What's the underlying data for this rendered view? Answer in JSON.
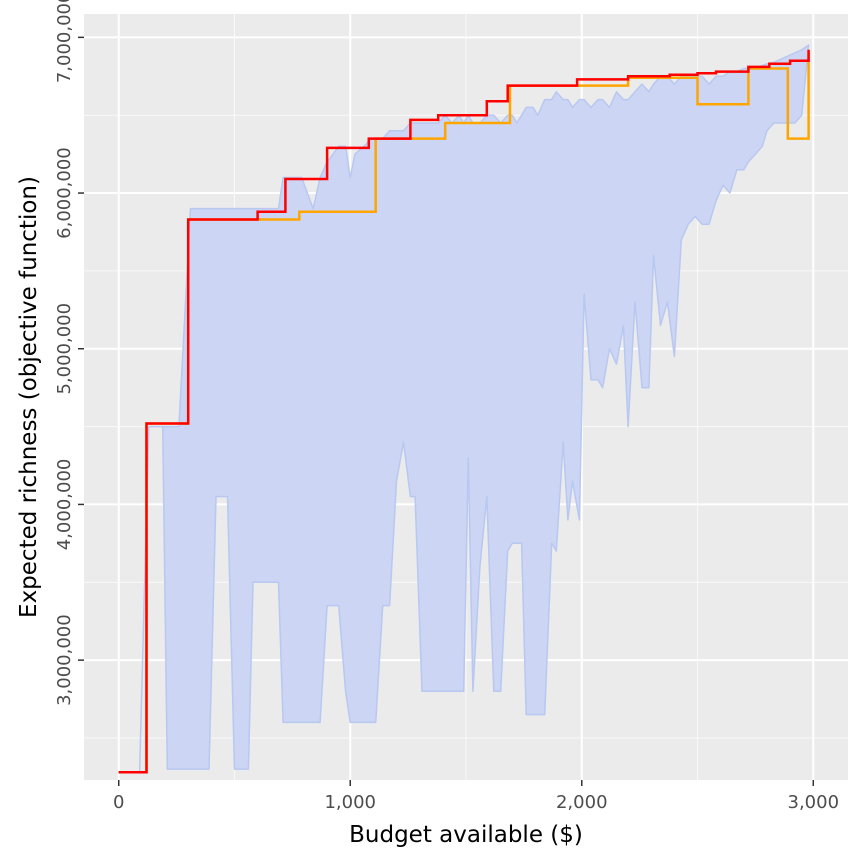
{
  "chart_data": {
    "type": "line",
    "title": "",
    "xlabel": "Budget available ($)",
    "ylabel": "Expected richness (objective function)",
    "xlim": [
      -150,
      3150
    ],
    "ylim": [
      2230000,
      7150000
    ],
    "x_ticks": [
      {
        "value": 0,
        "label": "0"
      },
      {
        "value": 1000,
        "label": "1,000"
      },
      {
        "value": 2000,
        "label": "2,000"
      },
      {
        "value": 3000,
        "label": "3,000"
      }
    ],
    "y_ticks": [
      {
        "value": 3000000,
        "label": "3,000,000"
      },
      {
        "value": 4000000,
        "label": "4,000,000"
      },
      {
        "value": 5000000,
        "label": "5,000,000"
      },
      {
        "value": 6000000,
        "label": "6,000,000"
      },
      {
        "value": 7000000,
        "label": "7,000,000"
      }
    ],
    "grid": true,
    "legend": "none",
    "colors": {
      "panel": "#ebebeb",
      "grid": "#ffffff",
      "ribbon_fill": "#ccd5f4",
      "ribbon_edge": "#b8c8f0",
      "optimal": "#ff0000",
      "alternative": "#ffa500"
    },
    "ribbon": {
      "x": [
        0,
        90,
        130,
        190,
        210,
        260,
        310,
        330,
        390,
        420,
        470,
        500,
        520,
        560,
        580,
        610,
        660,
        690,
        710,
        790,
        840,
        870,
        900,
        950,
        980,
        1000,
        1020,
        1060,
        1090,
        1110,
        1140,
        1170,
        1200,
        1230,
        1260,
        1280,
        1310,
        1340,
        1380,
        1410,
        1440,
        1470,
        1490,
        1510,
        1530,
        1560,
        1590,
        1620,
        1650,
        1680,
        1700,
        1720,
        1740,
        1760,
        1790,
        1810,
        1840,
        1870,
        1890,
        1920,
        1940,
        1960,
        1990,
        2010,
        2040,
        2070,
        2090,
        2120,
        2150,
        2180,
        2200,
        2230,
        2260,
        2290,
        2310,
        2340,
        2370,
        2400,
        2430,
        2460,
        2490,
        2520,
        2550,
        2580,
        2610,
        2640,
        2670,
        2700,
        2720,
        2750,
        2780,
        2800,
        2830,
        2860,
        2890,
        2920,
        2950,
        2980
      ],
      "high": [
        2280000,
        2280000,
        4500000,
        4500000,
        4500000,
        4500000,
        5900000,
        5900000,
        5900000,
        5900000,
        5900000,
        5900000,
        5900000,
        5900000,
        5900000,
        5900000,
        5900000,
        5900000,
        6100000,
        6100000,
        5900000,
        6100000,
        6200000,
        6300000,
        6300000,
        6100000,
        6250000,
        6300000,
        6350000,
        6350000,
        6350000,
        6400000,
        6400000,
        6400000,
        6450000,
        6450000,
        6450000,
        6450000,
        6450000,
        6500000,
        6450000,
        6500000,
        6450000,
        6500000,
        6450000,
        6450000,
        6500000,
        6500000,
        6450000,
        6500000,
        6500000,
        6450000,
        6500000,
        6550000,
        6550000,
        6500000,
        6600000,
        6600000,
        6650000,
        6600000,
        6600000,
        6550000,
        6600000,
        6600000,
        6550000,
        6600000,
        6600000,
        6550000,
        6650000,
        6600000,
        6600000,
        6650000,
        6700000,
        6650000,
        6700000,
        6750000,
        6750000,
        6700000,
        6750000,
        6750000,
        6750000,
        6750000,
        6700000,
        6750000,
        6750000,
        6780000,
        6780000,
        6800000,
        6800000,
        6800000,
        6820000,
        6830000,
        6840000,
        6860000,
        6880000,
        6900000,
        6920000,
        6950000
      ],
      "low": [
        2280000,
        2280000,
        4500000,
        4500000,
        2300000,
        2300000,
        2300000,
        2300000,
        2300000,
        4050000,
        4050000,
        2300000,
        2300000,
        2300000,
        3500000,
        3500000,
        3500000,
        3500000,
        2600000,
        2600000,
        2600000,
        2600000,
        3350000,
        3350000,
        2800000,
        2600000,
        2600000,
        2600000,
        2600000,
        2600000,
        3350000,
        3350000,
        4150000,
        4400000,
        4050000,
        4050000,
        2800000,
        2800000,
        2800000,
        2800000,
        2800000,
        2800000,
        2800000,
        4300000,
        2800000,
        3600000,
        4050000,
        2800000,
        2800000,
        3700000,
        3750000,
        3750000,
        3750000,
        2650000,
        2650000,
        2650000,
        2650000,
        3750000,
        3700000,
        4400000,
        3900000,
        4150000,
        3900000,
        5350000,
        4800000,
        4800000,
        4750000,
        5000000,
        4900000,
        5150000,
        4500000,
        5300000,
        4750000,
        4750000,
        5600000,
        5150000,
        5300000,
        4950000,
        5700000,
        5800000,
        5850000,
        5800000,
        5800000,
        5950000,
        6050000,
        6000000,
        6150000,
        6150000,
        6200000,
        6250000,
        6300000,
        6400000,
        6450000,
        6450000,
        6450000,
        6450000,
        6500000,
        6950000
      ]
    },
    "series": [
      {
        "color": "#ffa500",
        "x": [
          0,
          120,
          120,
          300,
          300,
          600,
          600,
          780,
          780,
          1110,
          1110,
          1410,
          1410,
          1690,
          1690,
          2200,
          2200,
          2500,
          2500,
          2720,
          2720,
          2890,
          2890,
          2980,
          2980
        ],
        "y": [
          2280000,
          2280000,
          4520000,
          4520000,
          5830000,
          5830000,
          5830000,
          5830000,
          5880000,
          5880000,
          6350000,
          6350000,
          6450000,
          6450000,
          6690000,
          6690000,
          6740000,
          6740000,
          6570000,
          6570000,
          6800000,
          6800000,
          6350000,
          6350000,
          6900000
        ]
      },
      {
        "color": "#ff0000",
        "x": [
          0,
          120,
          120,
          300,
          300,
          600,
          600,
          720,
          720,
          900,
          900,
          1080,
          1080,
          1260,
          1260,
          1380,
          1380,
          1590,
          1590,
          1680,
          1680,
          1980,
          1980,
          2200,
          2200,
          2380,
          2380,
          2500,
          2500,
          2580,
          2580,
          2720,
          2720,
          2810,
          2810,
          2900,
          2900,
          2980,
          2980
        ],
        "y": [
          2280000,
          2280000,
          4520000,
          4520000,
          5830000,
          5830000,
          5880000,
          5880000,
          6090000,
          6090000,
          6290000,
          6290000,
          6350000,
          6350000,
          6470000,
          6470000,
          6500000,
          6500000,
          6590000,
          6590000,
          6690000,
          6690000,
          6730000,
          6730000,
          6750000,
          6750000,
          6760000,
          6760000,
          6770000,
          6770000,
          6780000,
          6780000,
          6810000,
          6810000,
          6830000,
          6830000,
          6850000,
          6850000,
          6920000
        ]
      }
    ]
  }
}
